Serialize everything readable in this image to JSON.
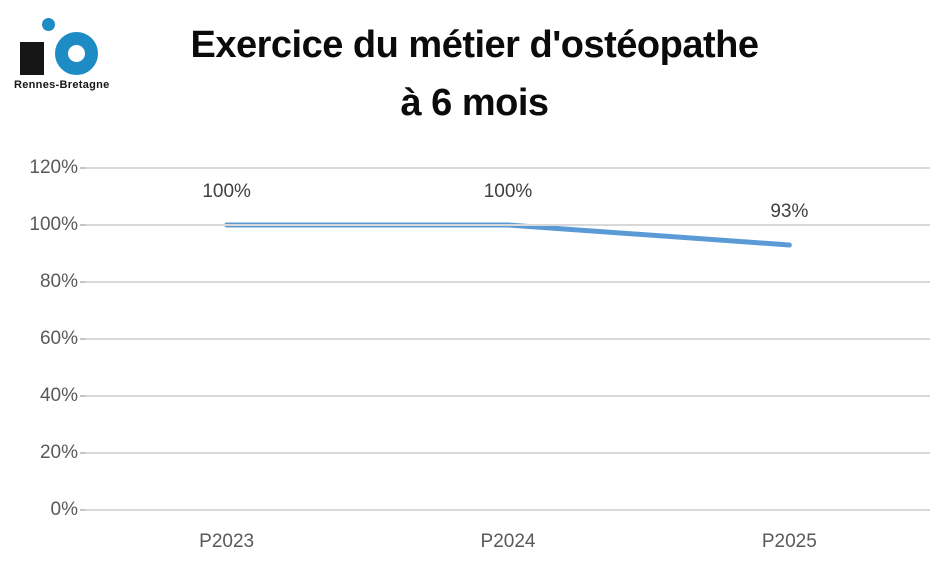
{
  "logo": {
    "name": "Rennes-Bretagne",
    "brand_blue": "#1d8bc4",
    "brand_black": "#161616"
  },
  "title": {
    "line1": "Exercice du métier d'ostéopathe",
    "line2": "à 6 mois"
  },
  "chart_data": {
    "type": "line",
    "title": "Exercice du métier d'ostéopathe à 6 mois",
    "categories": [
      "P2023",
      "P2024",
      "P2025"
    ],
    "values": [
      100,
      100,
      93
    ],
    "data_labels": [
      "100%",
      "100%",
      "93%"
    ],
    "y_tick_values": [
      120,
      100,
      80,
      60,
      40,
      20,
      0
    ],
    "y_tick_labels": [
      "120%",
      "100%",
      "80%",
      "60%",
      "40%",
      "20%",
      "0%"
    ],
    "ylim": [
      0,
      120
    ],
    "xlabel": "",
    "ylabel": "",
    "grid": true,
    "legend": false,
    "line_color": "#5B9BD5",
    "grid_color": "#D9D9D9",
    "axis_text_color": "#595959",
    "data_label_color": "#404040"
  }
}
